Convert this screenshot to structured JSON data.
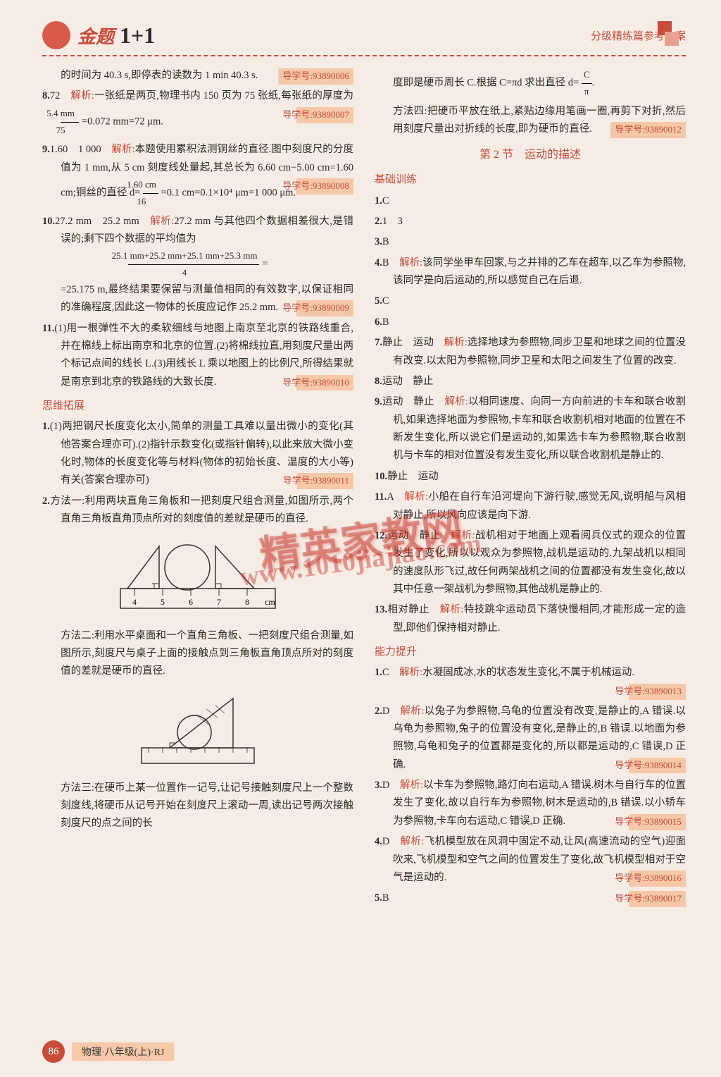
{
  "header": {
    "logo_text": "金题",
    "logo_num": "1+1",
    "right_text": "分级精练篇参考答案"
  },
  "watermark_main": "精英家教网",
  "watermark_url": "www.1010jiajiao.com",
  "footer": {
    "page_num": "86",
    "text": "物理·八年级(上)·RJ"
  },
  "left_col": {
    "items": [
      {
        "text": "的时间为 40.3 s,即停表的读数为 1 min 40.3 s.",
        "tag": "导学号:93890006",
        "cont": true
      },
      {
        "num": "8.",
        "answer": "72",
        "label": "解析:",
        "text": "一张纸是两页,物理书内 150 页为 75 张纸,每张纸的厚度为",
        "frac_num": "5.4 mm",
        "frac_den": "75",
        "text2": "=0.072 mm=72 μm.",
        "tag": "导学号:93890007"
      },
      {
        "num": "9.",
        "answer": "1.60　1 000",
        "label": "解析:",
        "text": "本题使用累积法测铜丝的直径.图中刻度尺的分度值为 1 mm,从 5 cm 刻度线处量起,其总长为 6.60 cm−5.00 cm=1.60 cm;铜丝的直径 d=",
        "frac_num": "1.60 cm",
        "frac_den": "16",
        "text2": "=0.1 cm=0.1×10⁴ μm=1 000 μm.",
        "tag": "导学号:93890008"
      },
      {
        "num": "10.",
        "answer": "27.2 mm　25.2 mm",
        "label": "解析:",
        "text": "27.2 mm 与其他四个数据相差很大,是错误的;剩下四个数据的平均值为",
        "frac_num": "25.1 mm+25.2 mm+25.1 mm+25.3 mm",
        "frac_den": "4",
        "text2": "=25.175 m,最终结果要保留与测量值相同的有效数字,以保证相同的准确程度,因此这一物体的长度应记作 25.2 mm.",
        "tag": "导学号:93890009"
      },
      {
        "num": "11.",
        "text": "(1)用一根弹性不大的柔软细线与地图上南京至北京的铁路线重合,并在棉线上标出南京和北京的位置.(2)将棉线拉直,用刻度尺量出两个标记点间的线长 L.(3)用线长 L 乘以地图上的比例尺,所得结果就是南京到北京的铁路线的大致长度.",
        "tag": "导学号:93890010"
      }
    ],
    "section2_title": "思维拓展",
    "section2_items": [
      {
        "num": "1.",
        "text": "(1)两把钢尺长度变化太小,简单的测量工具难以量出微小的变化(其他答案合理亦可).(2)指针示数变化(或指针偏转),以此来放大微小变化时,物体的长度变化等与材料(物体的初始长度、温度的大小等)有关(答案合理亦可)",
        "tag": "导学号:93890011"
      },
      {
        "num": "2.",
        "text": "方法一:利用两块直角三角板和一把刻度尺组合测量,如图所示,两个直角三角板直角顶点所对的刻度值的差就是硬币的直径."
      }
    ],
    "diagram1_ticks": [
      "4",
      "5",
      "6",
      "7",
      "8",
      "cm"
    ],
    "method2_text": "方法二:利用水平桌面和一个直角三角板、一把刻度尺组合测量,如图所示,刻度尺与桌子上面的接触点到三角板直角顶点所对的刻度值的差就是硬币的直径.",
    "method3_text": "方法三:在硬币上某一位置作一记号,让记号接触刻度尺上一个整数刻度线,将硬币从记号开始在刻度尺上滚动一周,读出记号两次接触刻度尺的点之间的长"
  },
  "right_col": {
    "top_cont": "度即是硬币周长 C.根据 C=πd 求出直径 d=",
    "top_frac_num": "C",
    "top_frac_den": "π",
    "method4_text": "方法四:把硬币平放在纸上,紧贴边缘用笔画一圈,再剪下对折,然后用刻度尺量出对折线的长度,即为硬币的直径.",
    "top_tag": "导学号:93890012",
    "section_title": "第 2 节　运动的描述",
    "basic_title": "基础训练",
    "basic_items": [
      {
        "num": "1.",
        "answer": "C"
      },
      {
        "num": "2.",
        "answer": "1　3"
      },
      {
        "num": "3.",
        "answer": "B"
      },
      {
        "num": "4.",
        "answer": "B",
        "label": "解析:",
        "text": "该同学坐甲车回家,与之并排的乙车在超车,以乙车为参照物,该同学是向后运动的,所以感觉自己在后退."
      },
      {
        "num": "5.",
        "answer": "C"
      },
      {
        "num": "6.",
        "answer": "B"
      },
      {
        "num": "7.",
        "answer": "静止　运动",
        "label": "解析:",
        "text": "选择地球为参照物,同步卫星和地球之间的位置没有改变.以太阳为参照物,同步卫星和太阳之间发生了位置的改变."
      },
      {
        "num": "8.",
        "answer": "运动　静止"
      },
      {
        "num": "9.",
        "answer": "运动　静止",
        "label": "解析:",
        "text": "以相同速度、向同一方向前进的卡车和联合收割机,如果选择地面为参照物,卡车和联合收割机相对地面的位置在不断发生变化,所以说它们是运动的,如果选卡车为参照物,联合收割机与卡车的相对位置没有发生变化,所以联合收割机是静止的."
      },
      {
        "num": "10.",
        "answer": "静止　运动"
      },
      {
        "num": "11.",
        "answer": "A",
        "label": "解析:",
        "text": "小船在自行车沿河堤向下游行驶,感觉无风,说明船与风相对静止,所以风向应该是向下游."
      },
      {
        "num": "12.",
        "answer": "运动　静止",
        "label": "解析:",
        "text": "战机相对于地面上观看阅兵仪式的观众的位置发生了变化,所以以观众为参照物,战机是运动的.九架战机以相同的速度队形飞过,故任何两架战机之间的位置都没有发生变化,故以其中任意一架战机为参照物,其他战机是静止的."
      },
      {
        "num": "13.",
        "answer": "相对静止",
        "label": "解析:",
        "text": "特技跳伞运动员下落快慢相同,才能形成一定的造型,即他们保持相对静止."
      }
    ],
    "ability_title": "能力提升",
    "ability_items": [
      {
        "num": "1.",
        "answer": "C",
        "label": "解析:",
        "text": "水凝固成冰,水的状态发生变化,不属于机械运动.",
        "tag": "导学号:93890013"
      },
      {
        "num": "2.",
        "answer": "D",
        "label": "解析:",
        "text": "以兔子为参照物,乌龟的位置没有改变,是静止的,A 错误.以乌龟为参照物,兔子的位置没有变化,是静止的,B 错误.以地面为参照物,乌龟和兔子的位置都是变化的,所以都是运动的,C 错误,D 正确.",
        "tag": "导学号:93890014"
      },
      {
        "num": "3.",
        "answer": "D",
        "label": "解析:",
        "text": "以卡车为参照物,路灯向右运动,A 错误.树木与自行车的位置发生了变化,故以自行车为参照物,树木是运动的,B 错误.以小轿车为参照物,卡车向右运动,C 错误,D 正确.",
        "tag": "导学号:93890015"
      },
      {
        "num": "4.",
        "answer": "D",
        "label": "解析:",
        "text": "飞机模型放在风洞中固定不动,让风(高速流动的空气)迎面吹来,飞机模型和空气之间的位置发生了变化,故飞机模型相对于空气是运动的.",
        "tag": "导学号:93890016"
      },
      {
        "num": "5.",
        "answer": "B",
        "tag": "导学号:93890017"
      }
    ]
  }
}
